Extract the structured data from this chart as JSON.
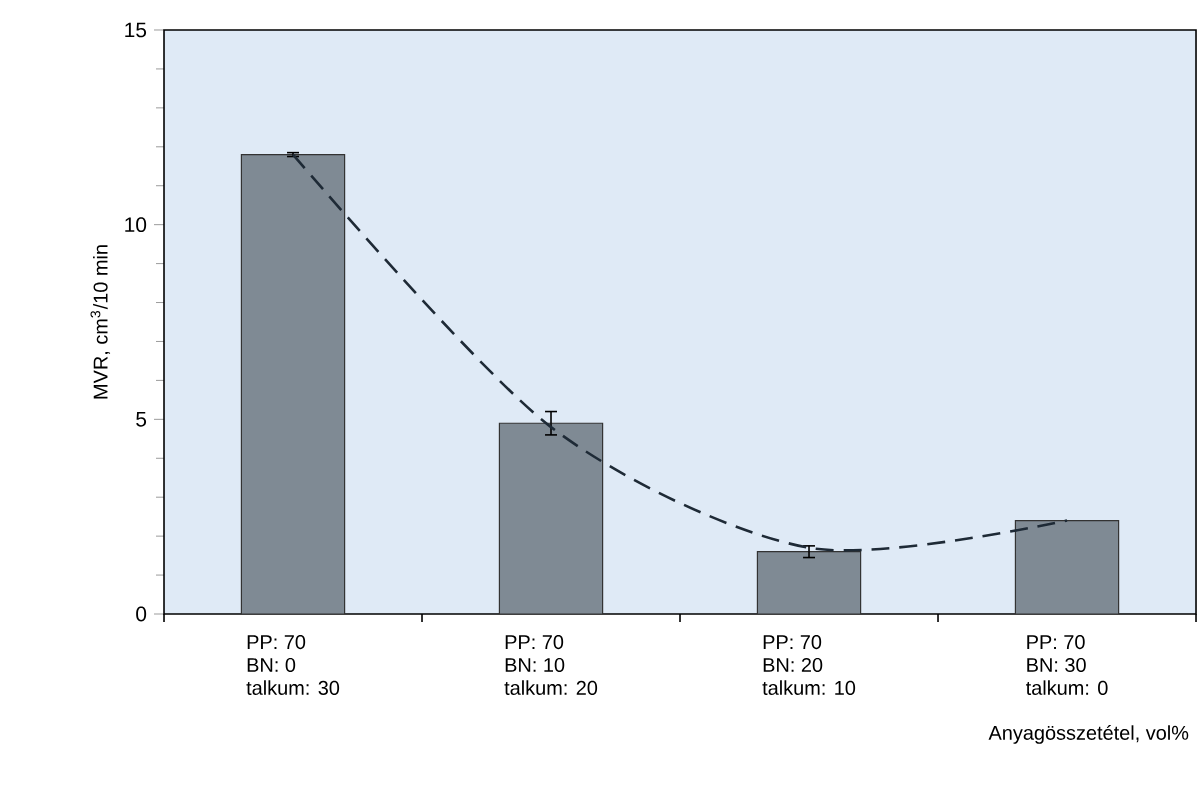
{
  "chart_data": {
    "type": "bar",
    "ylabel": "MVR, cm$^{3}$/10 min",
    "xlabel": "Anyagösszetétel, vol%",
    "categories": [
      "PP: 70\nBN: 0\ntalkum: 30",
      "PP: 70\nBN: 10\ntalkum: 20",
      "PP: 70\nBN: 20\ntalkum: 10",
      "PP: 70\nBN: 30\ntalkum: 0"
    ],
    "series": [
      {
        "color": "#7f8a94",
        "values": [
          11.8,
          4.9,
          1.6,
          2.4
        ],
        "errors": [
          0.05,
          0.3,
          0.15,
          null
        ]
      },
      {
        "type": "line",
        "color": "#1e2a36",
        "line_style": "dashed",
        "values": [
          11.8,
          4.8,
          1.7,
          2.4
        ]
      }
    ],
    "ylim": [
      0,
      15
    ],
    "yticks": [
      0,
      5,
      10,
      15
    ],
    "grid": false
  }
}
